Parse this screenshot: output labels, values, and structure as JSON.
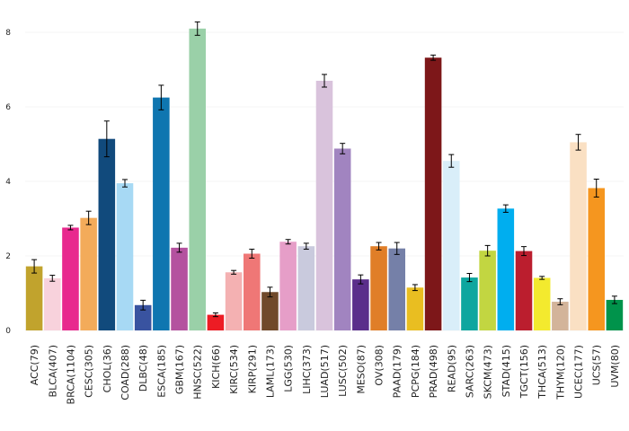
{
  "chart_data": {
    "type": "bar",
    "title": "",
    "xlabel": "",
    "ylabel": "",
    "ylim": [
      0,
      8.5
    ],
    "yticks": [
      0,
      2,
      4,
      6,
      8
    ],
    "ytick_labels": [
      "0",
      "2",
      "4",
      "6",
      "8"
    ],
    "grid": "horizontal",
    "legend": "none",
    "categories": [
      "ACC(79)",
      "BLCA(407)",
      "BRCA(1104)",
      "CESC(305)",
      "CHOL(36)",
      "COAD(288)",
      "DLBC(48)",
      "ESCA(185)",
      "GBM(167)",
      "HNSC(522)",
      "KICH(66)",
      "KIRC(534)",
      "KIRP(291)",
      "LAML(173)",
      "LGG(530)",
      "LIHC(373)",
      "LUAD(517)",
      "LUSC(502)",
      "MESO(87)",
      "OV(308)",
      "PAAD(179)",
      "PCPG(184)",
      "PRAD(498)",
      "READ(95)",
      "SARC(263)",
      "SKCM(473)",
      "STAD(415)",
      "TGCT(156)",
      "THCA(513)",
      "THYM(120)",
      "UCEC(177)",
      "UCS(57)",
      "UVM(80)"
    ],
    "values": [
      1.72,
      1.4,
      2.76,
      3.02,
      5.14,
      3.95,
      0.68,
      6.25,
      2.22,
      8.1,
      0.42,
      1.56,
      2.06,
      1.03,
      2.38,
      2.26,
      6.7,
      4.88,
      1.37,
      2.26,
      2.2,
      1.15,
      7.32,
      4.55,
      1.42,
      2.14,
      3.27,
      2.13,
      1.41,
      0.77,
      5.05,
      3.82,
      0.82
    ],
    "errors": [
      0.18,
      0.08,
      0.06,
      0.18,
      0.48,
      0.1,
      0.13,
      0.33,
      0.12,
      0.18,
      0.05,
      0.05,
      0.12,
      0.13,
      0.06,
      0.08,
      0.17,
      0.14,
      0.12,
      0.1,
      0.16,
      0.08,
      0.07,
      0.17,
      0.11,
      0.14,
      0.1,
      0.12,
      0.04,
      0.08,
      0.21,
      0.24,
      0.1
    ],
    "colors": [
      "#C1A32D",
      "#F8D2DC",
      "#E8298E",
      "#F3AB5A",
      "#114A7C",
      "#A7D9F4",
      "#3953A0",
      "#0F76B0",
      "#B4529F",
      "#9AD0A8",
      "#ED1C24",
      "#F4B1B2",
      "#EF7776",
      "#70492A",
      "#E69EC8",
      "#C9CADD",
      "#D9C3DC",
      "#A184C0",
      "#5A2E8B",
      "#E07E28",
      "#7580A8",
      "#E9BE21",
      "#7D1719",
      "#D9EEF9",
      "#0EA69F",
      "#C2D641",
      "#00AEEF",
      "#BB1E2E",
      "#F3EA2E",
      "#D3B49A",
      "#FAE0C3",
      "#F5961F",
      "#00934B"
    ]
  }
}
